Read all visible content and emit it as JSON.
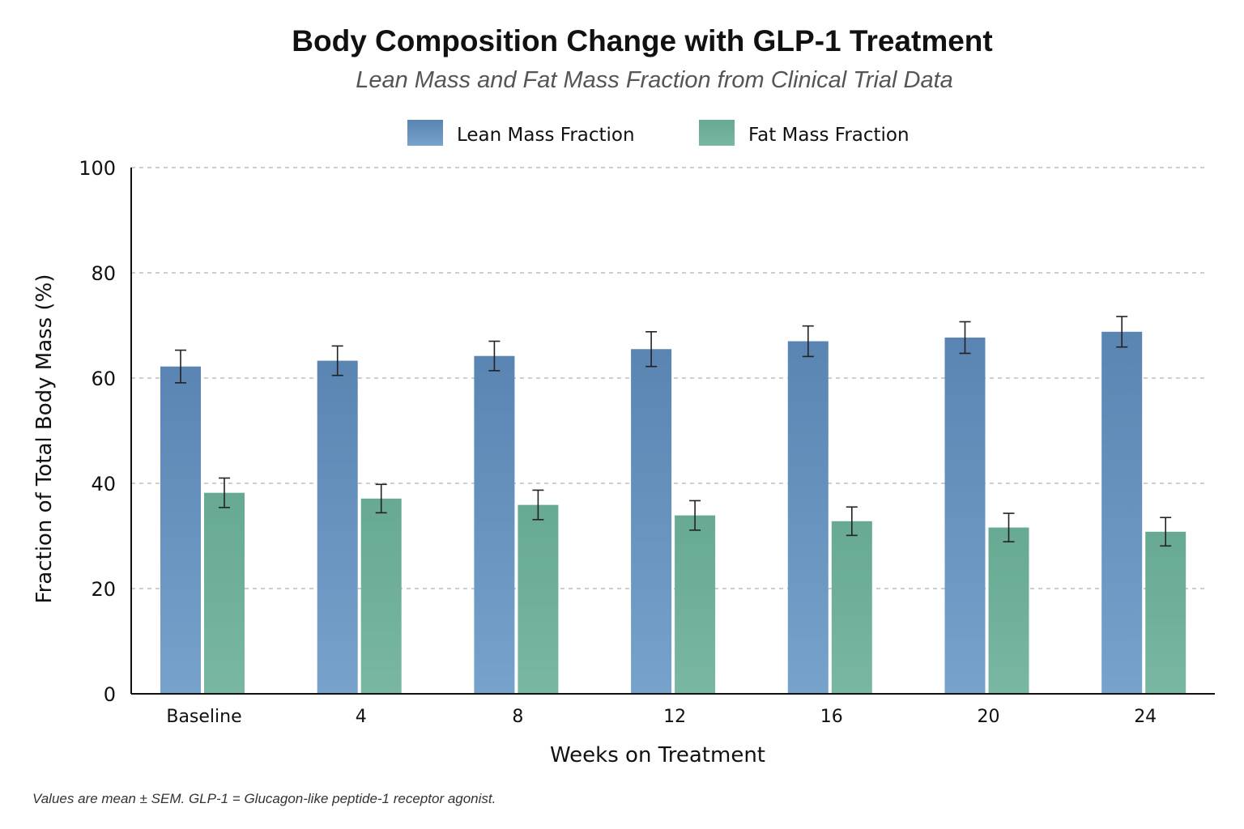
{
  "chart_data": {
    "type": "bar",
    "title": "Body Composition Change with GLP-1 Treatment",
    "subtitle": "Lean Mass and Fat Mass Fraction from Clinical Trial Data",
    "xlabel": "Weeks on Treatment",
    "ylabel": "Fraction of Total Body Mass (%)",
    "ylim": [
      0,
      100
    ],
    "yticks": [
      "0",
      "20",
      "40",
      "60",
      "80",
      "100"
    ],
    "categories": [
      "Baseline",
      "4",
      "8",
      "12",
      "16",
      "20",
      "24"
    ],
    "grid": true,
    "legend_position": "top-center",
    "series": [
      {
        "name": "Lean Mass Fraction",
        "color": "#5b87b5",
        "values": [
          62.2,
          63.3,
          64.2,
          65.5,
          67.0,
          67.7,
          68.8
        ],
        "errors": [
          3.1,
          2.8,
          2.8,
          3.3,
          2.9,
          3.0,
          2.9
        ]
      },
      {
        "name": "Fat Mass Fraction",
        "color": "#6aad96",
        "values": [
          38.2,
          37.1,
          35.9,
          33.9,
          32.8,
          31.6,
          30.8
        ],
        "errors": [
          2.8,
          2.7,
          2.8,
          2.8,
          2.7,
          2.7,
          2.7
        ]
      }
    ],
    "footnote": "Values are mean ± SEM. GLP-1 = Glucagon-like peptide-1 receptor agonist."
  }
}
